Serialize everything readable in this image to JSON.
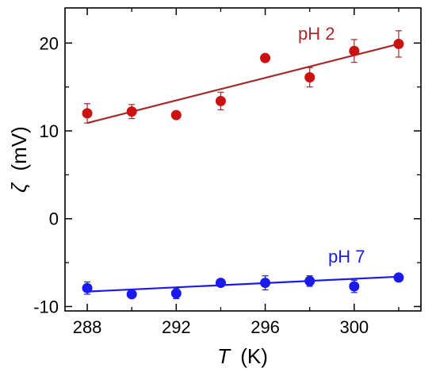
{
  "chart_data": {
    "type": "scatter",
    "xlabel": {
      "symbol": "T",
      "unit": "(K)"
    },
    "ylabel": {
      "symbol": "ζ",
      "unit": "(mV)"
    },
    "xlim": [
      287,
      303
    ],
    "ylim": [
      -10.5,
      24
    ],
    "xticks": [
      288,
      292,
      296,
      300
    ],
    "xticks_minor": [
      290,
      294,
      298,
      302
    ],
    "yticks": [
      -10,
      0,
      10,
      20
    ],
    "yticks_minor": [
      -5,
      5,
      15
    ],
    "grid": false,
    "series": [
      {
        "name": "pH 2",
        "color": "#cc1111",
        "fit_color": "#a52a2a",
        "x": [
          288,
          290,
          292,
          294,
          296,
          298,
          300,
          302
        ],
        "y": [
          12.0,
          12.2,
          11.8,
          13.4,
          18.3,
          16.1,
          19.1,
          19.9
        ],
        "err": [
          1.1,
          0.8,
          0.3,
          1.0,
          0.3,
          1.1,
          1.3,
          1.5
        ],
        "fit": {
          "x": [
            288,
            302
          ],
          "y": [
            10.9,
            19.9
          ]
        }
      },
      {
        "name": "pH 7",
        "color": "#1a1aee",
        "fit_color": "#1a1aee",
        "x": [
          288,
          290,
          292,
          294,
          296,
          298,
          300,
          302
        ],
        "y": [
          -7.9,
          -8.6,
          -8.5,
          -7.3,
          -7.3,
          -7.1,
          -7.7,
          -6.7
        ],
        "err": [
          0.7,
          0.3,
          0.6,
          0.3,
          0.8,
          0.6,
          0.7,
          0.3
        ],
        "fit": {
          "x": [
            288,
            302
          ],
          "y": [
            -8.3,
            -6.6
          ]
        }
      }
    ]
  }
}
